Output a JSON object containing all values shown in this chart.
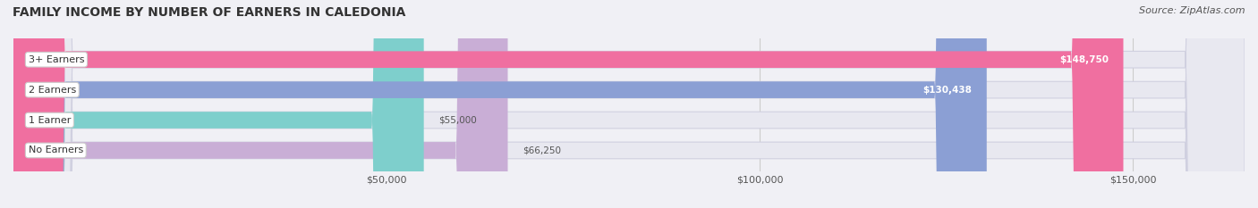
{
  "title": "FAMILY INCOME BY NUMBER OF EARNERS IN CALEDONIA",
  "source": "Source: ZipAtlas.com",
  "categories": [
    "No Earners",
    "1 Earner",
    "2 Earners",
    "3+ Earners"
  ],
  "values": [
    66250,
    55000,
    130438,
    148750
  ],
  "bar_colors": [
    "#c9aed6",
    "#7ecfcc",
    "#8b9fd4",
    "#f06fa0"
  ],
  "bar_edge_colors": [
    "#b090c8",
    "#5bbfbc",
    "#7080be",
    "#e04888"
  ],
  "label_values": [
    "$66,250",
    "$55,000",
    "$130,438",
    "$148,750"
  ],
  "x_min": 0,
  "x_max": 165000,
  "x_ticks": [
    50000,
    100000,
    150000
  ],
  "x_tick_labels": [
    "$50,000",
    "$100,000",
    "$150,000"
  ],
  "background_color": "#f0f0f5",
  "bar_background": "#e8e8f0",
  "title_fontsize": 10,
  "source_fontsize": 8,
  "bar_height": 0.55,
  "fig_width": 14.06,
  "fig_height": 2.33
}
